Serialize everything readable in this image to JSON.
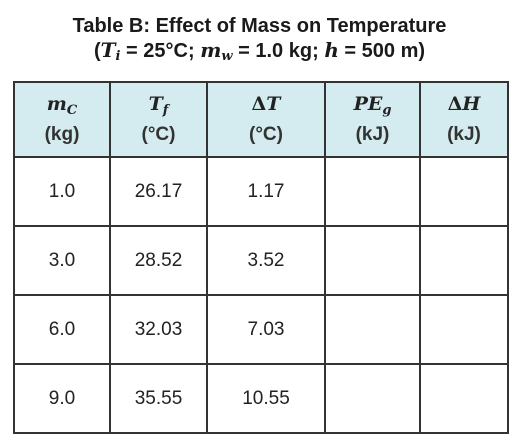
{
  "title": {
    "line1": "Table B: Effect of Mass on Temperature",
    "open_paren": "(",
    "ti_symbol": "T",
    "ti_sub": "i",
    "ti_value": "= 25°C;",
    "mw_symbol": "m",
    "mw_sub": "w",
    "mw_value": "= 1.0 kg;",
    "h_symbol": "h",
    "h_value": "= 500 m)"
  },
  "table": {
    "header_bg": "#d4ecef",
    "headers": [
      {
        "prefix": "",
        "symbol": "m",
        "sub": "C",
        "unit": "(kg)"
      },
      {
        "prefix": "",
        "symbol": "T",
        "sub": "f",
        "unit": "(°C)"
      },
      {
        "prefix": "Δ",
        "symbol": "T",
        "sub": "",
        "unit": "(°C)"
      },
      {
        "prefix": "",
        "symbol": "PE",
        "sub": "g",
        "unit": "(kJ)"
      },
      {
        "prefix": "Δ",
        "symbol": "H",
        "sub": "",
        "unit": "(kJ)"
      }
    ],
    "rows": [
      [
        "1.0",
        "26.17",
        "1.17",
        "",
        ""
      ],
      [
        "3.0",
        "28.52",
        "3.52",
        "",
        ""
      ],
      [
        "6.0",
        "32.03",
        "7.03",
        "",
        ""
      ],
      [
        "9.0",
        "35.55",
        "10.55",
        "",
        ""
      ]
    ]
  }
}
